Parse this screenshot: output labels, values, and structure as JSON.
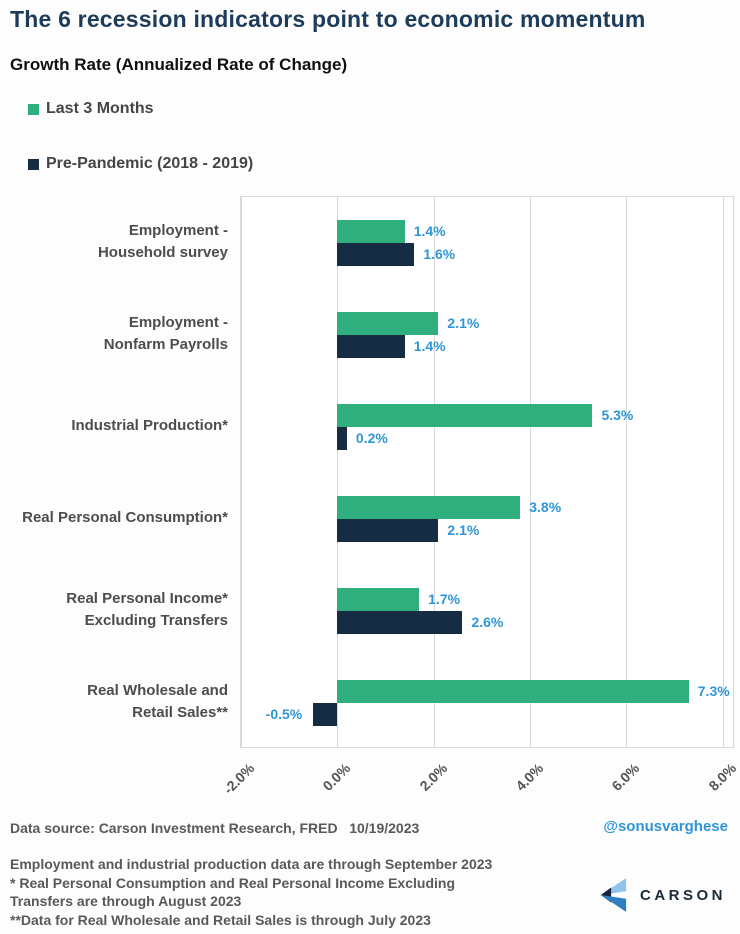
{
  "title": "The 6 recession indicators point to economic momentum",
  "subtitle": "Growth Rate (Annualized Rate of Change)",
  "legend": [
    {
      "label": "Last 3 Months",
      "color": "#2fae7e"
    },
    {
      "label": "Pre-Pandemic (2018 - 2019)",
      "color": "#152c42"
    }
  ],
  "chart_data": {
    "type": "bar",
    "orientation": "horizontal",
    "title": "Growth Rate (Annualized Rate of Change)",
    "categories": [
      "Employment -\nHousehold survey",
      "Employment -\nNonfarm Payrolls",
      "Industrial Production*",
      "Real Personal Consumption*",
      "Real Personal Income*\nExcluding Transfers",
      "Real Wholesale and\nRetail Sales**"
    ],
    "series": [
      {
        "name": "Last 3 Months",
        "color": "#2fae7e",
        "values": [
          1.4,
          2.1,
          5.3,
          3.8,
          1.7,
          7.3
        ],
        "labels": [
          "1.4%",
          "2.1%",
          "5.3%",
          "3.8%",
          "1.7%",
          "7.3%"
        ]
      },
      {
        "name": "Pre-Pandemic (2018 - 2019)",
        "color": "#152c42",
        "values": [
          1.6,
          1.4,
          0.2,
          2.1,
          2.6,
          -0.5
        ],
        "labels": [
          "1.6%",
          "1.4%",
          "0.2%",
          "2.1%",
          "2.6%",
          "-0.5%"
        ]
      }
    ],
    "x_axis": {
      "min": -2,
      "max": 8.26,
      "ticks": [
        -2,
        0,
        2,
        4,
        6,
        8
      ],
      "tick_labels": [
        "-2.0%",
        "0.0%",
        "2.0%",
        "4.0%",
        "6.0%",
        "8.0%"
      ]
    },
    "grid": true,
    "legend_position": "top-left",
    "value_label_color": "#2e96d6",
    "gridline_color": "#d9d9d9"
  },
  "footer": {
    "data_source": "Data source: Carson Investment Research, FRED   10/19/2023",
    "handle": "@sonusvarghese",
    "notes": "Employment and industrial production data are through September 2023\n* Real Personal Consumption and Real Personal Income Excluding\nTransfers are through August 2023\n**Data for Real Wholesale and Retail Sales is through July 2023",
    "brand_name": "CARSON"
  },
  "brand_colors": {
    "light": "#8fc3ec",
    "dark": "#16253c",
    "mid": "#2f7dc3"
  }
}
